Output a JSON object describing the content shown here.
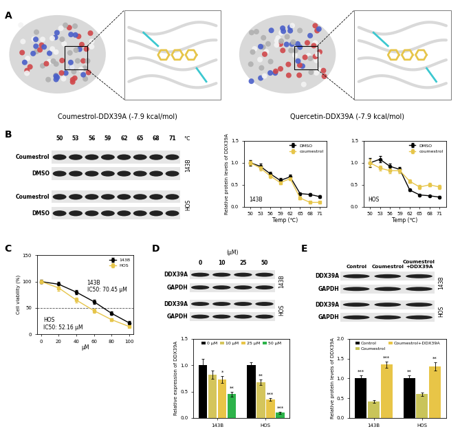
{
  "panel_labels": [
    "A",
    "B",
    "C",
    "D",
    "E"
  ],
  "docking": [
    {
      "title": "Coumestrol-DDX39A (-7.9 kcal/mol)"
    },
    {
      "title": "Quercetin-DDX39A (-7.9 kcal/mol)"
    }
  ],
  "blots": {
    "B": {
      "columns": [
        50,
        53,
        56,
        59,
        62,
        65,
        68,
        71
      ],
      "unit": "℃",
      "rows": [
        "Coumestrol",
        "DMSO",
        "Coumestrol",
        "DMSO"
      ],
      "groups": [
        "143B",
        "HOS"
      ]
    },
    "D": {
      "header": "(μM)",
      "columns": [
        0,
        10,
        25,
        50
      ],
      "rows": [
        "DDX39A",
        "GAPDH",
        "DDX39A",
        "GAPDH"
      ],
      "groups": [
        "143B",
        "HOS"
      ]
    },
    "E": {
      "columns": [
        "Control",
        "Coumestrol",
        "Coumestrol\n+DDX39A"
      ],
      "rows": [
        "DDX39A",
        "GAPDH",
        "DDX39A",
        "GAPDH"
      ],
      "groups": [
        "143B",
        "HOS"
      ]
    }
  },
  "chart_data": [
    {
      "type": "line",
      "annotations": [
        "143B"
      ],
      "x": [
        50,
        53,
        56,
        59,
        62,
        65,
        68,
        71
      ],
      "xlabel": "Temp (℃)",
      "ylabel": "Relative protein levels of DDX39A",
      "xlim": [
        48,
        73
      ],
      "xticks": [
        50,
        53,
        56,
        59,
        62,
        65,
        68,
        71
      ],
      "ylim": [
        0,
        1.5
      ],
      "yticks": [
        {
          "value": 0,
          "label": "0.0"
        },
        0.5,
        {
          "value": 1,
          "label": "1.0"
        },
        1.5
      ],
      "legend": "upper right",
      "series": [
        {
          "name": "DMSO",
          "color": "#000000",
          "marker": "o",
          "values": [
            1.0,
            0.92,
            0.75,
            0.6,
            0.68,
            0.3,
            0.28,
            0.23
          ],
          "errors": [
            0.06,
            0.06,
            0.05,
            0.05,
            0.05,
            0.03,
            0.03,
            0.03
          ]
        },
        {
          "name": "coumestrol",
          "color": "#e6c54a",
          "marker": "s",
          "values": [
            1.0,
            0.88,
            0.7,
            0.55,
            0.64,
            0.2,
            0.1,
            0.1
          ],
          "errors": [
            0.05,
            0.05,
            0.05,
            0.04,
            0.04,
            0.03,
            0.02,
            0.02
          ]
        }
      ]
    },
    {
      "type": "line",
      "annotations": [
        "HOS"
      ],
      "x": [
        50,
        53,
        56,
        59,
        62,
        65,
        68,
        71
      ],
      "xlabel": "Temp (℃)",
      "xlim": [
        48,
        73
      ],
      "xticks": [
        50,
        53,
        56,
        59,
        62,
        65,
        68,
        71
      ],
      "ylim": [
        0,
        1.5
      ],
      "yticks": [
        {
          "value": 0,
          "label": "0.0"
        },
        0.5,
        {
          "value": 1,
          "label": "1.0"
        },
        1.5
      ],
      "legend": "upper right",
      "series": [
        {
          "name": "DMSO",
          "color": "#000000",
          "marker": "o",
          "values": [
            1.0,
            1.08,
            0.92,
            0.85,
            0.38,
            0.27,
            0.25,
            0.22
          ],
          "errors": [
            0.1,
            0.07,
            0.06,
            0.05,
            0.03,
            0.02,
            0.02,
            0.02
          ]
        },
        {
          "name": "coumestrol",
          "color": "#e6c54a",
          "marker": "s",
          "values": [
            1.0,
            0.88,
            0.82,
            0.82,
            0.58,
            0.45,
            0.5,
            0.45
          ],
          "errors": [
            0.08,
            0.06,
            0.05,
            0.05,
            0.04,
            0.04,
            0.04,
            0.04
          ]
        }
      ]
    },
    {
      "type": "line",
      "annotations": [
        "143B\nIC50: 70.45 μM",
        "HOS\nIC50: 52.16 μM"
      ],
      "x": [
        0,
        20,
        40,
        60,
        80,
        100
      ],
      "xlabel": "μM",
      "ylabel": "Cell viability (%)",
      "xlim": [
        -5,
        105
      ],
      "xticks": [
        0,
        20,
        40,
        60,
        80,
        100
      ],
      "ylim": [
        0,
        150
      ],
      "yticks": [
        0,
        50,
        100,
        150
      ],
      "threshold": 50,
      "legend": "upper right",
      "series": [
        {
          "name": "143B",
          "color": "#000000",
          "marker": "o",
          "values": [
            100,
            95,
            80,
            62,
            40,
            22
          ],
          "errors": [
            3,
            4,
            4,
            4,
            3,
            3
          ]
        },
        {
          "name": "HOS",
          "color": "#e6c54a",
          "marker": "s",
          "values": [
            100,
            88,
            65,
            45,
            28,
            15
          ],
          "errors": [
            3,
            5,
            4,
            4,
            3,
            2
          ]
        }
      ]
    },
    {
      "type": "bar",
      "categories": [
        "143B",
        "HOS"
      ],
      "ylabel": "Relative expression of DDX39A",
      "ylim": [
        0,
        1.5
      ],
      "yticks": [
        {
          "value": 0,
          "label": "0.0"
        },
        0.5,
        {
          "value": 1,
          "label": "1.0"
        },
        1.5
      ],
      "legend": "upper center",
      "series": [
        {
          "name": "0 μM",
          "color": "#000000",
          "values": [
            1.0,
            1.0
          ],
          "errors": [
            0.12,
            0.06
          ],
          "significance": [
            null,
            null
          ]
        },
        {
          "name": "10 μM",
          "color": "#d4c55c",
          "values": [
            0.82,
            0.68
          ],
          "errors": [
            0.08,
            0.05
          ],
          "significance": [
            null,
            "**"
          ]
        },
        {
          "name": "25 μM",
          "color": "#e8c547",
          "values": [
            0.73,
            0.35
          ],
          "errors": [
            0.06,
            0.03
          ],
          "significance": [
            "*",
            "***"
          ]
        },
        {
          "name": "50 μM",
          "color": "#2db34a",
          "values": [
            0.45,
            0.1
          ],
          "errors": [
            0.04,
            0.02
          ],
          "significance": [
            "**",
            "***"
          ]
        }
      ]
    },
    {
      "type": "bar",
      "categories": [
        "143B",
        "HOS"
      ],
      "ylabel": "Relative protein levels of DDX39A",
      "ylim": [
        0,
        2.0
      ],
      "yticks": [
        {
          "value": 0,
          "label": "0.0"
        },
        0.5,
        {
          "value": 1,
          "label": "1.0"
        },
        1.5,
        {
          "value": 2,
          "label": "2.0"
        }
      ],
      "legend": "upper center",
      "series": [
        {
          "name": "Control",
          "color": "#000000",
          "values": [
            1.0,
            1.0
          ],
          "errors": [
            0.08,
            0.07
          ],
          "significance": [
            "***",
            "**"
          ]
        },
        {
          "name": "Coumestrol",
          "color": "#c9c45a",
          "values": [
            0.42,
            0.6
          ],
          "errors": [
            0.03,
            0.05
          ],
          "significance": [
            null,
            null
          ]
        },
        {
          "name": "Coumestrol+DDX39A",
          "color": "#e8c547",
          "values": [
            1.35,
            1.3
          ],
          "errors": [
            0.08,
            0.1
          ],
          "significance": [
            "***",
            "**"
          ]
        }
      ]
    }
  ]
}
